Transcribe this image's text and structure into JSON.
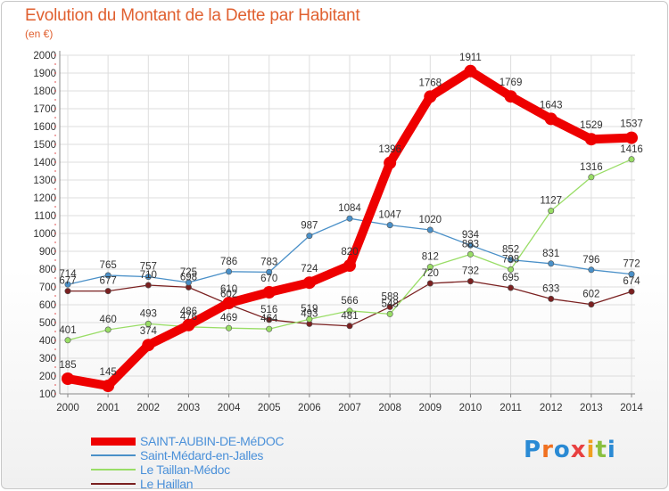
{
  "title": "Evolution du Montant de la Dette par Habitant",
  "unit": "(en €)",
  "logo": "Proxiti",
  "chart_data": {
    "type": "line",
    "x": [
      2000,
      2001,
      2002,
      2003,
      2004,
      2005,
      2006,
      2007,
      2008,
      2009,
      2010,
      2011,
      2012,
      2013,
      2014
    ],
    "ylim": [
      100,
      2000
    ],
    "yticks": [
      100,
      200,
      300,
      400,
      500,
      600,
      700,
      800,
      900,
      1000,
      1100,
      1200,
      1300,
      1400,
      1500,
      1600,
      1700,
      1800,
      1900,
      2000
    ],
    "grid": true,
    "legend_position": "bottom-left",
    "series": [
      {
        "name": "SAINT-AUBIN-DE-MéDOC",
        "color": "#ee0000",
        "values": [
          185,
          145,
          374,
          486,
          610,
          670,
          724,
          820,
          1396,
          1768,
          1911,
          1769,
          1643,
          1529,
          1537
        ],
        "labels": [
          "185",
          "145",
          "374",
          "486",
          "610",
          "670",
          "724",
          "820",
          "1396",
          "1768",
          "1911",
          "1769",
          "1643",
          "1529",
          "1537"
        ]
      },
      {
        "name": "Saint-Médard-en-Jalles",
        "color": "#4a90c8",
        "values": [
          714,
          765,
          757,
          725,
          786,
          783,
          987,
          1084,
          1047,
          1020,
          934,
          852,
          831,
          796,
          772
        ],
        "labels": [
          "714",
          "765",
          "757",
          "725",
          "786",
          "783",
          "987",
          "1084",
          "1047",
          "1020",
          "934",
          "852",
          "831",
          "796",
          "772"
        ]
      },
      {
        "name": "Le Taillan-Médoc",
        "color": "#99dd66",
        "values": [
          401,
          460,
          493,
          476,
          469,
          464,
          519,
          566,
          548,
          812,
          883,
          798,
          1127,
          1316,
          1416
        ],
        "labels": [
          "401",
          "460",
          "493",
          "476",
          "469",
          "464",
          "519",
          "566",
          "548",
          "812",
          "883",
          "798",
          "1127",
          "1316",
          "1416"
        ]
      },
      {
        "name": "Le Haillan",
        "color": "#7a2020",
        "values": [
          677,
          677,
          710,
          698,
          602,
          516,
          493,
          481,
          588,
          720,
          732,
          695,
          633,
          602,
          674
        ],
        "labels": [
          "677",
          "677",
          "710",
          "698",
          "602",
          "516",
          "493",
          "481",
          "588",
          "720",
          "732",
          "695",
          "633",
          "602",
          "674"
        ]
      }
    ]
  }
}
